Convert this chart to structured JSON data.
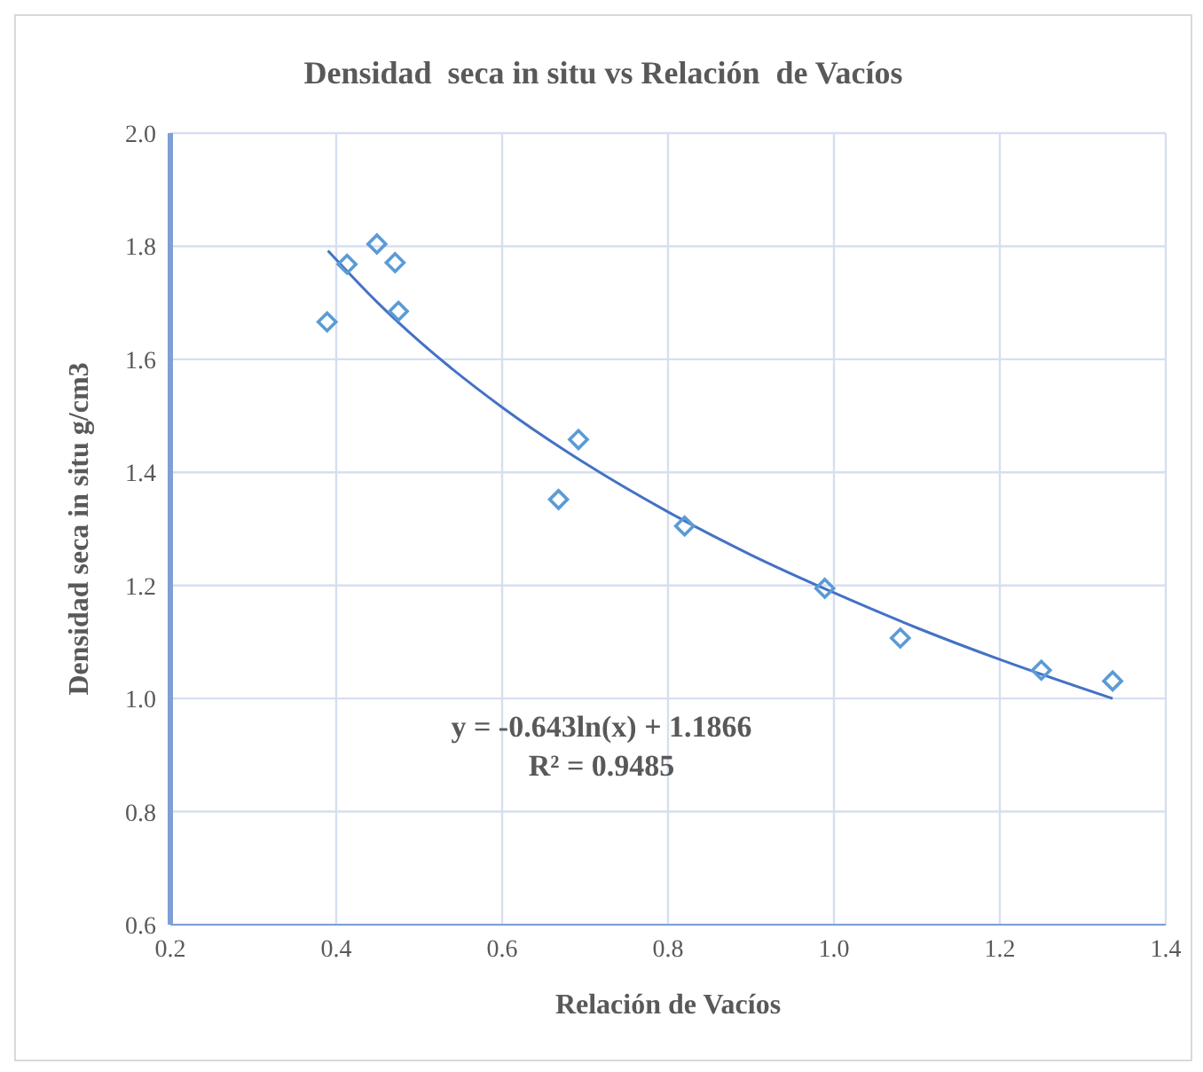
{
  "chart_data": {
    "type": "scatter",
    "title": "Densidad  seca in situ vs Relación  de Vacíos",
    "xlabel": "Relación de Vacíos",
    "ylabel": "Densidad seca in situ g/cm3",
    "xlim": [
      0.2,
      1.4
    ],
    "xticks": [
      {
        "value": 0.2,
        "label": "0.2"
      },
      {
        "value": 0.4,
        "label": "0.4"
      },
      {
        "value": 0.6,
        "label": "0.6"
      },
      {
        "value": 0.8,
        "label": "0.8"
      },
      {
        "value": 1.0,
        "label": "1.0"
      },
      {
        "value": 1.2,
        "label": "1.2"
      },
      {
        "value": 1.4,
        "label": "1.4"
      }
    ],
    "ylim": [
      0.6,
      2.0
    ],
    "yticks": [
      {
        "value": 0.6,
        "label": "0.6"
      },
      {
        "value": 0.8,
        "label": "0.8"
      },
      {
        "value": 1.0,
        "label": "1.0"
      },
      {
        "value": 1.2,
        "label": "1.2"
      },
      {
        "value": 1.4,
        "label": "1.4"
      },
      {
        "value": 1.6,
        "label": "1.6"
      },
      {
        "value": 1.8,
        "label": "1.8"
      },
      {
        "value": 2.0,
        "label": "2.0"
      }
    ],
    "grid": true,
    "marker": "diamond",
    "series": [
      {
        "color": "#5b9bd5",
        "x": [
          0.389,
          0.413,
          0.449,
          0.471,
          0.475,
          0.668,
          0.692,
          0.82,
          0.989,
          1.08,
          1.25,
          1.336
        ],
        "values": [
          1.666,
          1.768,
          1.804,
          1.771,
          1.685,
          1.352,
          1.458,
          1.305,
          1.195,
          1.107,
          1.05,
          1.031
        ]
      },
      {
        "type": "line",
        "color": "#4472c4",
        "marker": "none",
        "x": [
          0.39,
          0.45,
          0.5,
          0.6,
          0.7,
          0.8,
          0.9,
          1.0,
          1.1,
          1.2,
          1.336
        ],
        "values": [
          1.792,
          1.7,
          1.632,
          1.515,
          1.416,
          1.33,
          1.254,
          1.187,
          1.125,
          1.069,
          1.0
        ]
      }
    ],
    "annotations": [
      "y = -0.643ln(x) + 1.1866",
      "R² = 0.9485"
    ]
  }
}
